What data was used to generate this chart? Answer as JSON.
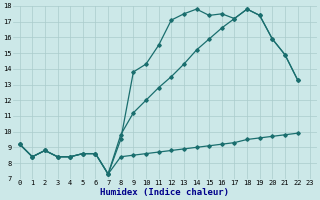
{
  "xlabel": "Humidex (Indice chaleur)",
  "bg_color": "#cce8e8",
  "grid_color": "#aacccc",
  "line_color": "#1a6e6e",
  "xlim_min": -0.5,
  "xlim_max": 23.5,
  "ylim_min": 7,
  "ylim_max": 18,
  "xticks": [
    0,
    1,
    2,
    3,
    4,
    5,
    6,
    7,
    8,
    9,
    10,
    11,
    12,
    13,
    14,
    15,
    16,
    17,
    18,
    19,
    20,
    21,
    22,
    23
  ],
  "yticks": [
    7,
    8,
    9,
    10,
    11,
    12,
    13,
    14,
    15,
    16,
    17,
    18
  ],
  "line1_x": [
    0,
    1,
    2,
    3,
    4,
    5,
    6,
    7,
    8,
    9,
    10,
    11,
    12,
    13,
    14,
    15,
    16,
    17,
    18,
    19,
    20,
    21,
    22
  ],
  "line1_y": [
    9.2,
    8.4,
    8.8,
    8.4,
    8.4,
    8.6,
    8.6,
    7.3,
    9.5,
    13.8,
    14.3,
    15.5,
    17.1,
    17.5,
    17.8,
    17.4,
    17.5,
    17.2,
    17.8,
    17.4,
    15.9,
    14.9,
    13.3
  ],
  "line2_x": [
    0,
    1,
    2,
    3,
    4,
    5,
    6,
    7,
    8,
    9,
    10,
    11,
    12,
    13,
    14,
    15,
    16,
    17,
    18,
    19,
    20,
    21,
    22
  ],
  "line2_y": [
    9.2,
    8.4,
    8.8,
    8.4,
    8.4,
    8.6,
    8.6,
    7.3,
    8.4,
    8.5,
    8.6,
    8.7,
    8.8,
    8.9,
    9.0,
    9.1,
    9.2,
    9.3,
    9.5,
    9.6,
    9.7,
    9.8,
    9.9
  ],
  "line3_x": [
    0,
    1,
    2,
    3,
    4,
    5,
    6,
    7,
    8,
    9,
    10,
    11,
    12,
    13,
    14,
    15,
    16,
    17,
    18,
    19,
    20,
    21,
    22
  ],
  "line3_y": [
    9.2,
    8.4,
    8.8,
    8.4,
    8.4,
    8.6,
    8.6,
    7.3,
    9.8,
    11.2,
    12.0,
    12.8,
    13.5,
    14.3,
    15.2,
    15.9,
    16.6,
    17.2,
    17.8,
    17.4,
    15.9,
    14.9,
    13.3
  ],
  "marker": "D",
  "markersize": 1.8,
  "linewidth": 0.9,
  "tick_fontsize": 5.0,
  "xlabel_fontsize": 6.5,
  "xlabel_color": "#00008B"
}
